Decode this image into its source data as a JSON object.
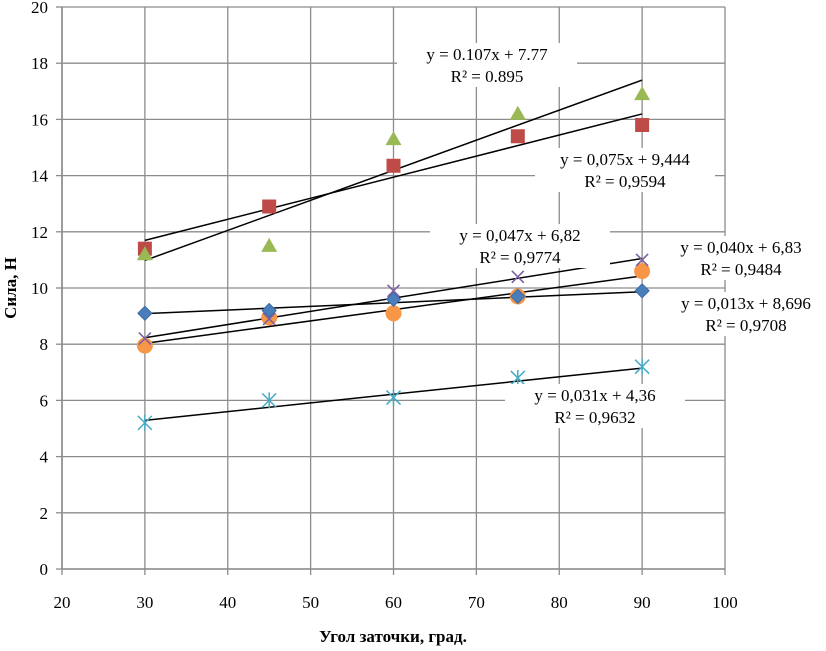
{
  "chart_data": {
    "type": "scatter",
    "title": "",
    "xlabel": "Угол заточки, град.",
    "ylabel": "Сила, Н",
    "xlim": [
      20,
      100
    ],
    "ylim": [
      0,
      20
    ],
    "xticks": [
      20,
      30,
      40,
      50,
      60,
      70,
      80,
      90,
      100
    ],
    "yticks": [
      0,
      2,
      4,
      6,
      8,
      10,
      12,
      14,
      16,
      18,
      20
    ],
    "grid": true,
    "legend": "none",
    "x": [
      30,
      45,
      60,
      75,
      90
    ],
    "series": [
      {
        "name": "series-diamond",
        "marker": "diamond",
        "color": "#4a7ebb",
        "values": [
          9.1,
          9.2,
          9.6,
          9.7,
          9.9
        ],
        "trend": {
          "slope": 0.013,
          "intercept": 8.696,
          "equation": "y = 0,013x + 8,696",
          "r2": "R² = 0,9708"
        }
      },
      {
        "name": "series-square",
        "marker": "square",
        "color": "#be4b48",
        "values": [
          11.4,
          12.9,
          14.35,
          15.4,
          15.8
        ],
        "trend": {
          "slope": 0.075,
          "intercept": 9.444,
          "equation": "y = 0,075x + 9,444",
          "r2": "R² = 0,9594"
        }
      },
      {
        "name": "series-triangle",
        "marker": "triangle",
        "color": "#98b954",
        "values": [
          11.2,
          11.5,
          15.3,
          16.2,
          16.9
        ],
        "trend": {
          "slope": 0.107,
          "intercept": 7.77,
          "equation": "y = 0.107x + 7.77",
          "r2": "R² = 0.895"
        }
      },
      {
        "name": "series-x",
        "marker": "x",
        "color": "#7d60a0",
        "values": [
          8.2,
          8.9,
          9.9,
          10.4,
          11.0
        ],
        "trend": {
          "slope": 0.047,
          "intercept": 6.82,
          "equation": "y = 0,047x + 6,82",
          "r2": "R² = 0,9774"
        }
      },
      {
        "name": "series-star",
        "marker": "star",
        "color": "#46aac5",
        "values": [
          5.2,
          6.0,
          6.1,
          6.8,
          7.2
        ],
        "trend": {
          "slope": 0.031,
          "intercept": 4.36,
          "equation": "y = 0,031x + 4,36",
          "r2": "R² = 0,9632"
        }
      },
      {
        "name": "series-circle",
        "marker": "circle",
        "color": "#f79646",
        "values": [
          7.95,
          8.95,
          9.1,
          9.7,
          10.6
        ],
        "trend": {
          "slope": 0.04,
          "intercept": 6.83,
          "equation": "y = 0,040x + 6,83",
          "r2": "R² = 0,9484"
        }
      }
    ]
  }
}
